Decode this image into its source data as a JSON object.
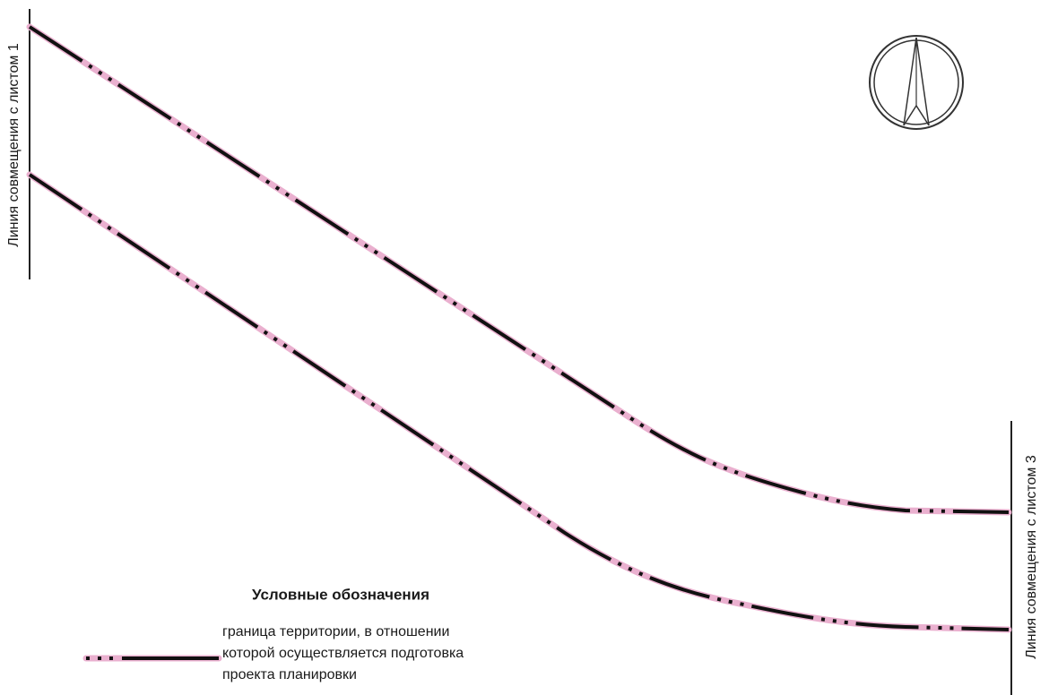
{
  "match_lines": [
    {
      "label": "Линия совмещения с листом 1"
    },
    {
      "label": "Линия совмещения с листом 3"
    }
  ],
  "legend": {
    "title": "Условные обозначения",
    "items": [
      {
        "lines": [
          "граница территории, в отношении",
          "которой осуществляется подготовка",
          "проекта планировки"
        ]
      }
    ]
  }
}
